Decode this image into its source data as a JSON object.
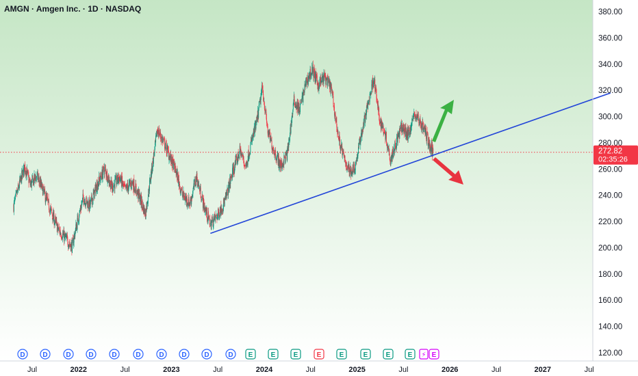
{
  "header": {
    "title": "AMGN · Amgen Inc. · 1D · NASDAQ"
  },
  "price_badge": {
    "price": "272.82",
    "countdown": "02:35:26",
    "color": "#f23645"
  },
  "colors": {
    "up_candle": "#089981",
    "down_candle": "#f23645",
    "trendline": "#2346d8",
    "arrow_up": "#3bb143",
    "arrow_down": "#e8343f",
    "background_top": "#c5e6c5",
    "background_bottom": "#ffffff",
    "dividend_marker": "#2962ff",
    "earnings_marker": "#089981",
    "earnings_marker_alt": "#f23645",
    "earnings_upcoming": "#d500f9"
  },
  "events": [
    {
      "type": "D",
      "label": "D"
    },
    {
      "type": "D",
      "label": "D"
    },
    {
      "type": "D",
      "label": "D"
    },
    {
      "type": "D",
      "label": "D"
    },
    {
      "type": "D",
      "label": "D"
    },
    {
      "type": "D",
      "label": "D"
    },
    {
      "type": "D",
      "label": "D"
    },
    {
      "type": "D",
      "label": "D"
    },
    {
      "type": "D",
      "label": "D"
    },
    {
      "type": "D",
      "label": "D"
    },
    {
      "type": "E",
      "label": "E"
    },
    {
      "type": "E",
      "label": "E"
    },
    {
      "type": "E",
      "label": "E"
    },
    {
      "type": "E-red",
      "label": "E"
    },
    {
      "type": "E",
      "label": "E"
    },
    {
      "type": "E",
      "label": "E"
    },
    {
      "type": "E",
      "label": "E"
    },
    {
      "type": "E",
      "label": "E"
    },
    {
      "type": "split",
      "label": "⚡"
    },
    {
      "type": "E-upcoming",
      "label": "E"
    }
  ],
  "chart_data": {
    "type": "line",
    "title": "AMGN · Amgen Inc. · 1D · NASDAQ",
    "xlabel": "",
    "ylabel": "",
    "ylim": [
      110,
      390
    ],
    "y_ticks": [
      "120.00",
      "140.00",
      "160.00",
      "180.00",
      "200.00",
      "220.00",
      "240.00",
      "260.00",
      "280.00",
      "300.00",
      "320.00",
      "340.00",
      "360.00",
      "380.00"
    ],
    "x_ticks": [
      {
        "label": "Jul",
        "bold": false
      },
      {
        "label": "2022",
        "bold": true
      },
      {
        "label": "Jul",
        "bold": false
      },
      {
        "label": "2023",
        "bold": true
      },
      {
        "label": "Jul",
        "bold": false
      },
      {
        "label": "2024",
        "bold": true
      },
      {
        "label": "Jul",
        "bold": false
      },
      {
        "label": "2025",
        "bold": true
      },
      {
        "label": "Jul",
        "bold": false
      },
      {
        "label": "2026",
        "bold": true
      },
      {
        "label": "Jul",
        "bold": false
      },
      {
        "label": "2027",
        "bold": true
      },
      {
        "label": "Jul",
        "bold": false
      }
    ],
    "series": [
      {
        "values": [
          [
            2021.3,
            232
          ],
          [
            2021.37,
            250
          ],
          [
            2021.42,
            262
          ],
          [
            2021.48,
            248
          ],
          [
            2021.55,
            255
          ],
          [
            2021.62,
            243
          ],
          [
            2021.7,
            228
          ],
          [
            2021.78,
            214
          ],
          [
            2021.86,
            207
          ],
          [
            2021.93,
            201
          ],
          [
            2021.98,
            218
          ],
          [
            2022.05,
            238
          ],
          [
            2022.12,
            232
          ],
          [
            2022.2,
            248
          ],
          [
            2022.28,
            260
          ],
          [
            2022.36,
            246
          ],
          [
            2022.44,
            254
          ],
          [
            2022.5,
            244
          ],
          [
            2022.58,
            250
          ],
          [
            2022.66,
            238
          ],
          [
            2022.72,
            226
          ],
          [
            2022.78,
            256
          ],
          [
            2022.85,
            290
          ],
          [
            2022.92,
            280
          ],
          [
            2022.98,
            270
          ],
          [
            2023.05,
            258
          ],
          [
            2023.12,
            240
          ],
          [
            2023.2,
            234
          ],
          [
            2023.27,
            254
          ],
          [
            2023.35,
            232
          ],
          [
            2023.42,
            218
          ],
          [
            2023.5,
            225
          ],
          [
            2023.58,
            236
          ],
          [
            2023.66,
            258
          ],
          [
            2023.74,
            274
          ],
          [
            2023.8,
            262
          ],
          [
            2023.86,
            280
          ],
          [
            2023.92,
            296
          ],
          [
            2023.98,
            322
          ],
          [
            2024.04,
            288
          ],
          [
            2024.1,
            275
          ],
          [
            2024.18,
            262
          ],
          [
            2024.25,
            272
          ],
          [
            2024.32,
            312
          ],
          [
            2024.38,
            305
          ],
          [
            2024.45,
            326
          ],
          [
            2024.52,
            336
          ],
          [
            2024.58,
            324
          ],
          [
            2024.65,
            330
          ],
          [
            2024.72,
            322
          ],
          [
            2024.8,
            284
          ],
          [
            2024.86,
            268
          ],
          [
            2024.92,
            258
          ],
          [
            2024.98,
            262
          ],
          [
            2025.05,
            288
          ],
          [
            2025.12,
            310
          ],
          [
            2025.18,
            330
          ],
          [
            2025.24,
            298
          ],
          [
            2025.3,
            288
          ],
          [
            2025.36,
            268
          ],
          [
            2025.42,
            280
          ],
          [
            2025.48,
            292
          ],
          [
            2025.55,
            286
          ],
          [
            2025.62,
            302
          ],
          [
            2025.68,
            296
          ],
          [
            2025.74,
            288
          ],
          [
            2025.79,
            276
          ],
          [
            2025.82,
            272.82
          ]
        ]
      }
    ],
    "trendline": [
      [
        2023.42,
        211
      ],
      [
        2027.73,
        318
      ]
    ],
    "last_price": 272.82,
    "current_price_line": 272.82
  }
}
